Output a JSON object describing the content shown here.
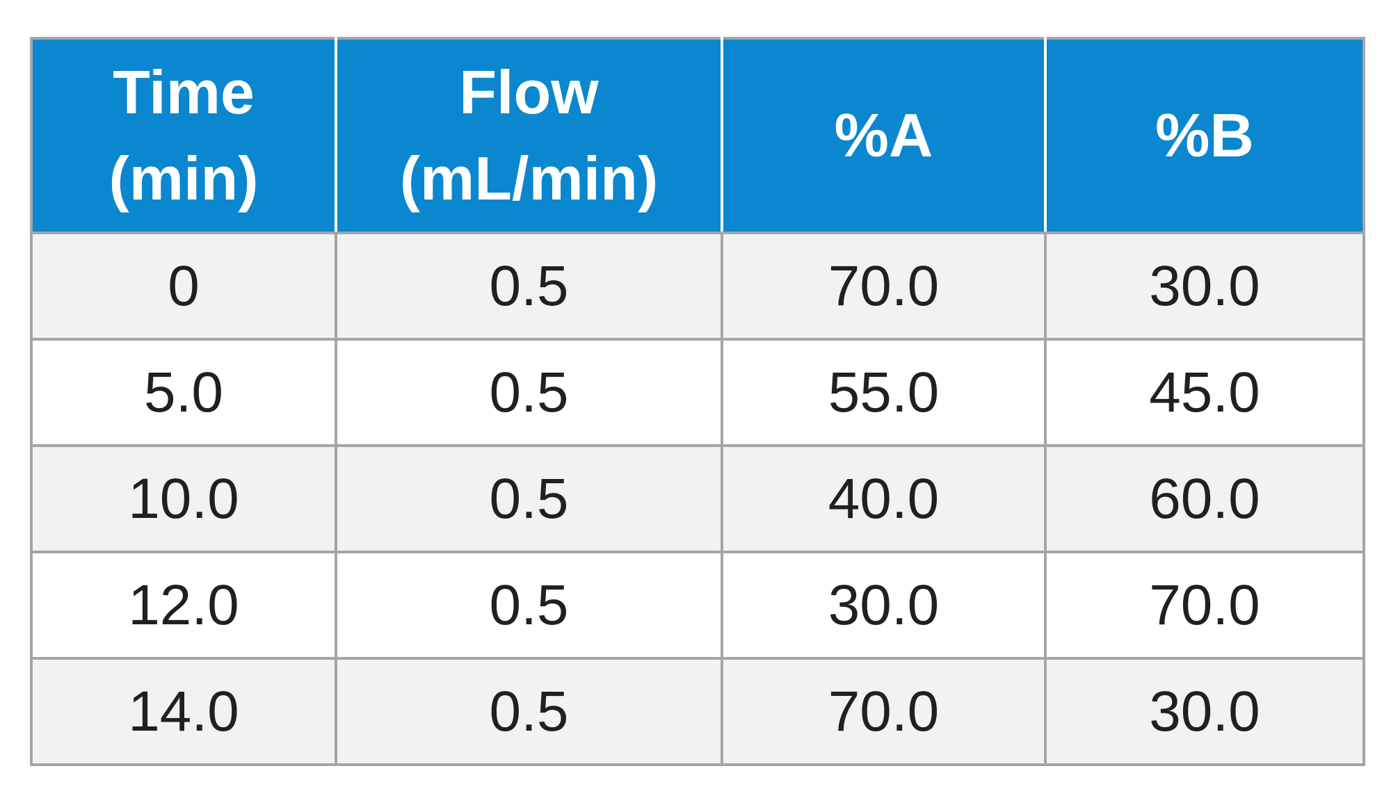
{
  "table": {
    "headers": [
      {
        "line1": "Time",
        "line2": "(min)"
      },
      {
        "line1": "Flow",
        "line2": "(mL/min)"
      },
      {
        "line1": "%A",
        "line2": ""
      },
      {
        "line1": "%B",
        "line2": ""
      }
    ],
    "rows": [
      [
        "0",
        "0.5",
        "70.0",
        "30.0"
      ],
      [
        "5.0",
        "0.5",
        "55.0",
        "45.0"
      ],
      [
        "10.0",
        "0.5",
        "40.0",
        "60.0"
      ],
      [
        "12.0",
        "0.5",
        "30.0",
        "70.0"
      ],
      [
        "14.0",
        "0.5",
        "70.0",
        "30.0"
      ]
    ]
  },
  "colors": {
    "header_bg": "#0a87cf",
    "header_text": "#ffffff",
    "row_alt_bg": "#f1f2f4",
    "row_bg": "#ffffff",
    "grid": "#a3a5a8",
    "cell_text": "#231f20"
  }
}
